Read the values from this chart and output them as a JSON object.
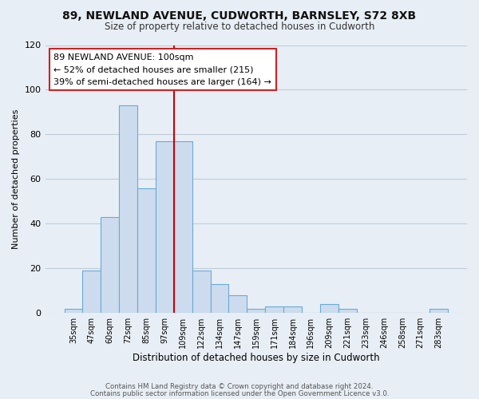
{
  "title": "89, NEWLAND AVENUE, CUDWORTH, BARNSLEY, S72 8XB",
  "subtitle": "Size of property relative to detached houses in Cudworth",
  "xlabel": "Distribution of detached houses by size in Cudworth",
  "ylabel": "Number of detached properties",
  "bar_labels": [
    "35sqm",
    "47sqm",
    "60sqm",
    "72sqm",
    "85sqm",
    "97sqm",
    "109sqm",
    "122sqm",
    "134sqm",
    "147sqm",
    "159sqm",
    "171sqm",
    "184sqm",
    "196sqm",
    "209sqm",
    "221sqm",
    "233sqm",
    "246sqm",
    "258sqm",
    "271sqm",
    "283sqm"
  ],
  "bar_values": [
    2,
    19,
    43,
    93,
    56,
    77,
    77,
    19,
    13,
    8,
    2,
    3,
    3,
    0,
    4,
    2,
    0,
    0,
    0,
    0,
    2
  ],
  "bar_color": "#ccdcee",
  "bar_edge_color": "#6aaad4",
  "vline_color": "#cc0000",
  "annotation_title": "89 NEWLAND AVENUE: 100sqm",
  "annotation_line1": "← 52% of detached houses are smaller (215)",
  "annotation_line2": "39% of semi-detached houses are larger (164) →",
  "annotation_box_color": "white",
  "annotation_box_edge": "#cc2222",
  "ylim": [
    0,
    120
  ],
  "yticks": [
    0,
    20,
    40,
    60,
    80,
    100,
    120
  ],
  "footer1": "Contains HM Land Registry data © Crown copyright and database right 2024.",
  "footer2": "Contains public sector information licensed under the Open Government Licence v3.0.",
  "bg_color": "#e8eef5",
  "plot_bg_color": "#e8eef5",
  "grid_color": "#c0cad8"
}
